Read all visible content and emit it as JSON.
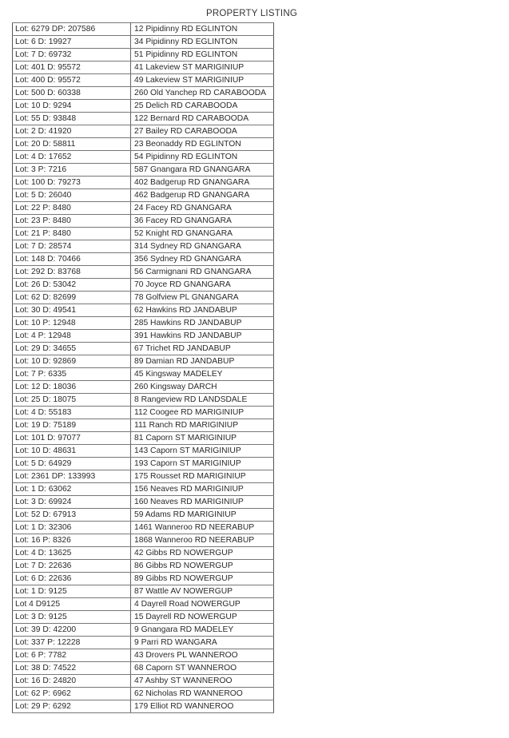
{
  "title": "PROPERTY LISTING",
  "rows": [
    [
      "Lot: 6279 DP: 207586",
      "12 Pipidinny RD EGLINTON"
    ],
    [
      "Lot: 6 D: 19927",
      "34 Pipidinny RD EGLINTON"
    ],
    [
      "Lot: 7 D: 69732",
      "51 Pipidinny RD EGLINTON"
    ],
    [
      "Lot: 401 D: 95572",
      "41 Lakeview ST MARIGINIUP"
    ],
    [
      "Lot: 400 D: 95572",
      "49 Lakeview ST MARIGINIUP"
    ],
    [
      "Lot: 500 D: 60338",
      "260 Old Yanchep RD CARABOODA"
    ],
    [
      "Lot: 10 D: 9294",
      "25 Delich RD CARABOODA"
    ],
    [
      "Lot: 55 D: 93848",
      "122 Bernard RD CARABOODA"
    ],
    [
      "Lot: 2 D: 41920",
      "27 Bailey RD CARABOODA"
    ],
    [
      "Lot: 20 D: 58811",
      "23 Beonaddy RD EGLINTON"
    ],
    [
      "Lot: 4 D: 17652",
      "54 Pipidinny RD EGLINTON"
    ],
    [
      "Lot: 3 P: 7216",
      "587 Gnangara RD GNANGARA"
    ],
    [
      "Lot: 100 D: 79273",
      "402 Badgerup RD GNANGARA"
    ],
    [
      "Lot: 5 D: 26040",
      "462 Badgerup RD GNANGARA"
    ],
    [
      "Lot: 22 P: 8480",
      "24 Facey RD GNANGARA"
    ],
    [
      "Lot: 23 P: 8480",
      "36 Facey RD GNANGARA"
    ],
    [
      "Lot: 21 P: 8480",
      "52 Knight RD GNANGARA"
    ],
    [
      "Lot: 7 D: 28574",
      "314 Sydney RD GNANGARA"
    ],
    [
      "Lot: 148 D: 70466",
      "356 Sydney RD GNANGARA"
    ],
    [
      "Lot: 292 D: 83768",
      "56 Carmignani RD GNANGARA"
    ],
    [
      "Lot: 26 D: 53042",
      "70 Joyce RD GNANGARA"
    ],
    [
      "Lot: 62 D: 82699",
      "78 Golfview PL GNANGARA"
    ],
    [
      "Lot: 30 D: 49541",
      "62 Hawkins RD JANDABUP"
    ],
    [
      "Lot: 10 P: 12948",
      "285 Hawkins RD JANDABUP"
    ],
    [
      "Lot: 4 P: 12948",
      "391 Hawkins RD JANDABUP"
    ],
    [
      "Lot: 29 D: 34655",
      "67 Trichet RD JANDABUP"
    ],
    [
      "Lot: 10 D: 92869",
      "89 Damian RD JANDABUP"
    ],
    [
      "Lot: 7 P: 6335",
      "45 Kingsway  MADELEY"
    ],
    [
      "Lot: 12 D: 18036",
      "260 Kingsway  DARCH"
    ],
    [
      "Lot: 25 D: 18075",
      "8 Rangeview RD LANDSDALE"
    ],
    [
      "Lot: 4 D: 55183",
      "112 Coogee RD MARIGINIUP"
    ],
    [
      "Lot: 19 D: 75189",
      "111 Ranch RD MARIGINIUP"
    ],
    [
      "Lot: 101 D: 97077",
      "81 Caporn ST MARIGINIUP"
    ],
    [
      "Lot: 10 D: 48631",
      "143 Caporn ST MARIGINIUP"
    ],
    [
      "Lot: 5 D: 64929",
      "193 Caporn ST MARIGINIUP"
    ],
    [
      "Lot: 2361 DP: 133993",
      "175 Rousset RD MARIGINIUP"
    ],
    [
      "Lot: 1 D: 63062",
      "156 Neaves RD MARIGINIUP"
    ],
    [
      "Lot: 3 D: 69924",
      "160 Neaves RD MARIGINIUP"
    ],
    [
      "Lot: 52 D: 67913",
      "59 Adams RD MARIGINIUP"
    ],
    [
      "Lot: 1 D: 32306",
      "1461 Wanneroo RD NEERABUP"
    ],
    [
      "Lot: 16 P: 8326",
      "1868 Wanneroo RD NEERABUP"
    ],
    [
      "Lot: 4 D: 13625",
      "42 Gibbs RD NOWERGUP"
    ],
    [
      "Lot: 7 D: 22636",
      "86 Gibbs RD NOWERGUP"
    ],
    [
      "Lot: 6 D: 22636",
      "89 Gibbs RD NOWERGUP"
    ],
    [
      "Lot: 1 D: 9125",
      "87 Wattle AV NOWERGUP"
    ],
    [
      "Lot 4 D9125",
      "4 Dayrell Road NOWERGUP"
    ],
    [
      "Lot: 3 D: 9125",
      "15 Dayrell RD NOWERGUP"
    ],
    [
      "Lot: 39 D: 42200",
      "9 Gnangara RD MADELEY"
    ],
    [
      "Lot: 337 P: 12228",
      "9 Parri RD WANGARA"
    ],
    [
      "Lot: 6 P: 7782",
      "43 Drovers PL WANNEROO"
    ],
    [
      "Lot: 38 D: 74522",
      "68 Caporn ST WANNEROO"
    ],
    [
      "Lot: 16 D: 24820",
      "47 Ashby ST WANNEROO"
    ],
    [
      "Lot: 62 P: 6962",
      "62 Nicholas RD WANNEROO"
    ],
    [
      "Lot: 29 P: 6292",
      "179 Elliot RD WANNEROO"
    ]
  ]
}
